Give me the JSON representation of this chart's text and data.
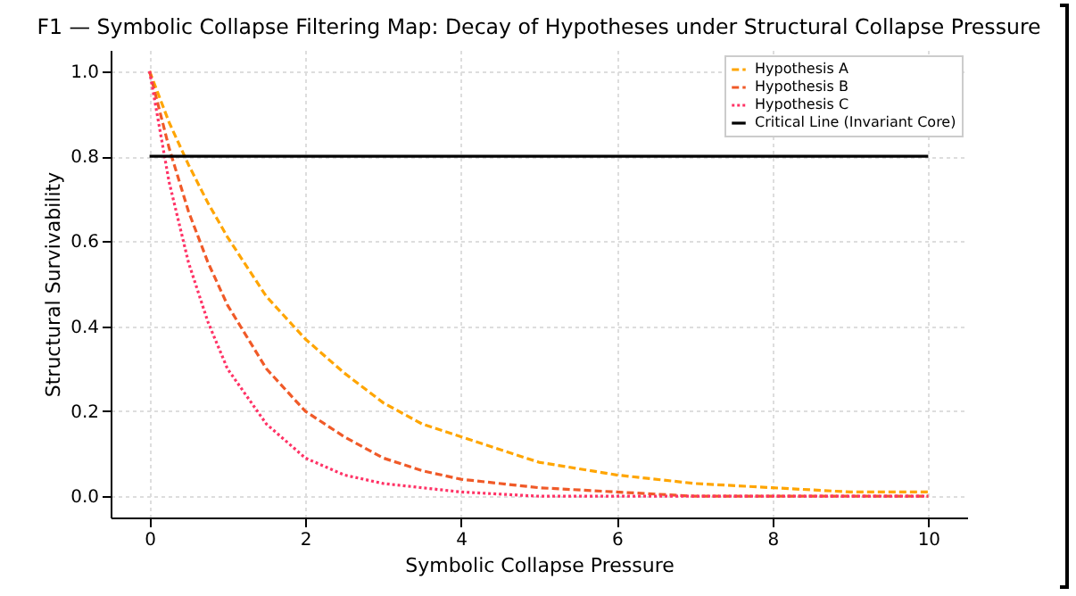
{
  "chart_data": {
    "type": "line",
    "title": "F1 — Symbolic Collapse Filtering Map: Decay of Hypotheses under Structural Collapse Pressure",
    "xlabel": "Symbolic Collapse Pressure",
    "ylabel": "Structural Survivability",
    "x": [
      0,
      0.25,
      0.5,
      0.75,
      1,
      1.5,
      2,
      2.5,
      3,
      3.5,
      4,
      5,
      6,
      7,
      8,
      9,
      10
    ],
    "series": [
      {
        "name": "Hypothesis A",
        "color": "#ffa500",
        "line_style": "dashed",
        "values": [
          1,
          0.88,
          0.78,
          0.69,
          0.61,
          0.47,
          0.37,
          0.29,
          0.22,
          0.17,
          0.14,
          0.08,
          0.05,
          0.03,
          0.02,
          0.01,
          0.01
        ]
      },
      {
        "name": "Hypothesis B",
        "color": "#f05a28",
        "line_style": "dashed",
        "values": [
          1,
          0.82,
          0.67,
          0.55,
          0.45,
          0.3,
          0.2,
          0.14,
          0.09,
          0.06,
          0.04,
          0.02,
          0.01,
          0,
          0,
          0,
          0
        ]
      },
      {
        "name": "Hypothesis C",
        "color": "#ff3366",
        "line_style": "dotted",
        "values": [
          1,
          0.74,
          0.55,
          0.41,
          0.3,
          0.17,
          0.09,
          0.05,
          0.03,
          0.02,
          0.01,
          0,
          0,
          0,
          0,
          0,
          0
        ]
      },
      {
        "name": "Critical Line (Invariant Core)",
        "color": "#000000",
        "line_style": "solid",
        "x": [
          0,
          10
        ],
        "values": [
          0.8,
          0.8
        ]
      }
    ],
    "xlim": [
      -0.5,
      10.5
    ],
    "xticks": [
      0,
      2,
      4,
      6,
      8,
      10
    ],
    "ylim": [
      -0.05,
      1.05
    ],
    "yticks": [
      {
        "value": 0,
        "label": "0.0"
      },
      {
        "value": 0.2,
        "label": "0.2"
      },
      {
        "value": 0.4,
        "label": "0.4"
      },
      {
        "value": 0.6,
        "label": "0.6"
      },
      {
        "value": 0.8,
        "label": "0.8"
      },
      {
        "value": 1,
        "label": "1.0"
      }
    ],
    "grid": true,
    "legend": "top right",
    "marker": "none"
  }
}
